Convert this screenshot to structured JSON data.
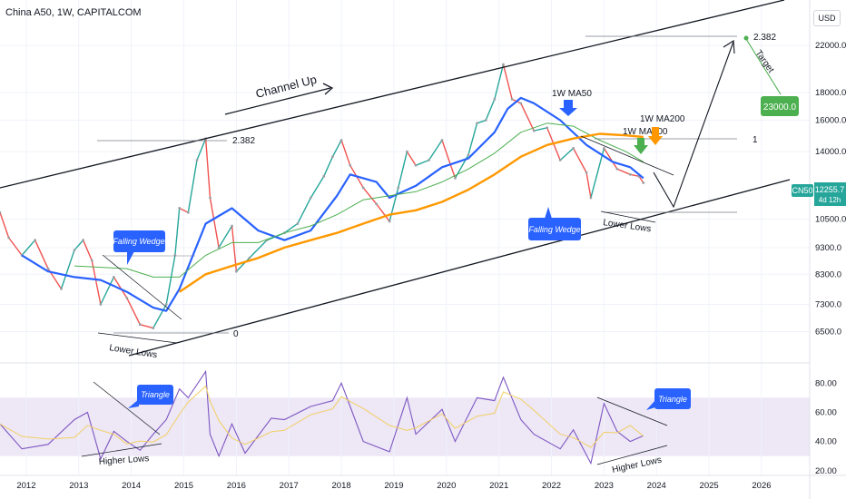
{
  "header": {
    "title": "China A50, 1W, CAPITALCOM",
    "currency": "USD"
  },
  "colors": {
    "up": "#26a69a",
    "down": "#ef5350",
    "ma50": "#2962ff",
    "ma100": "#4caf50",
    "ma200": "#ff9800",
    "rsi": "#7e57c2",
    "rsi_signal": "#f2cf63",
    "rsi_band": "#ede7f6",
    "bubble": "#2962ff",
    "target": "#4caf50"
  },
  "chart_data": [
    {
      "type": "line",
      "title": "China A50, 1W, CAPITALCOM",
      "y_scale": "log",
      "ylim": [
        5800,
        25500
      ],
      "xlim": [
        "2011-07",
        "2026-12"
      ],
      "x_ticks": [
        "2012",
        "2013",
        "2014",
        "2015",
        "2016",
        "2017",
        "2018",
        "2019",
        "2020",
        "2021",
        "2022",
        "2023",
        "2024",
        "2025",
        "2026"
      ],
      "y_ticks": [
        "22000.0",
        "18000.0",
        "16000.0",
        "14000.0",
        "10500.0",
        "9300.0",
        "8300.0",
        "7300.0",
        "6500.0"
      ],
      "price_label": {
        "symbol": "CN50",
        "value": "12255.7",
        "countdown": "4d 12h"
      },
      "target_label": "23000.0",
      "series": [
        {
          "name": "Price",
          "points": [
            [
              "2011-07",
              10800
            ],
            [
              "2011-09",
              9700
            ],
            [
              "2011-12",
              9000
            ],
            [
              "2012-03",
              9600
            ],
            [
              "2012-06",
              8500
            ],
            [
              "2012-09",
              7800
            ],
            [
              "2012-12",
              9200
            ],
            [
              "2013-02",
              9600
            ],
            [
              "2013-04",
              8800
            ],
            [
              "2013-06",
              7300
            ],
            [
              "2013-09",
              8200
            ],
            [
              "2013-12",
              7500
            ],
            [
              "2014-03",
              6700
            ],
            [
              "2014-06",
              6600
            ],
            [
              "2014-09",
              7300
            ],
            [
              "2014-11",
              9000
            ],
            [
              "2014-12",
              11000
            ],
            [
              "2015-02",
              10800
            ],
            [
              "2015-04",
              13500
            ],
            [
              "2015-06",
              14800
            ],
            [
              "2015-07",
              11500
            ],
            [
              "2015-09",
              9300
            ],
            [
              "2015-12",
              10200
            ],
            [
              "2016-01",
              8400
            ],
            [
              "2016-04",
              8900
            ],
            [
              "2016-08",
              9600
            ],
            [
              "2016-12",
              9900
            ],
            [
              "2017-03",
              10300
            ],
            [
              "2017-06",
              11500
            ],
            [
              "2017-09",
              12600
            ],
            [
              "2017-11",
              13700
            ],
            [
              "2018-01",
              14700
            ],
            [
              "2018-03",
              13200
            ],
            [
              "2018-06",
              12000
            ],
            [
              "2018-09",
              11200
            ],
            [
              "2018-12",
              10400
            ],
            [
              "2019-02",
              12000
            ],
            [
              "2019-04",
              14000
            ],
            [
              "2019-06",
              13200
            ],
            [
              "2019-09",
              13500
            ],
            [
              "2019-12",
              14700
            ],
            [
              "2020-03",
              12500
            ],
            [
              "2020-06",
              13800
            ],
            [
              "2020-08",
              15800
            ],
            [
              "2020-10",
              16000
            ],
            [
              "2020-12",
              17500
            ],
            [
              "2021-02",
              20300
            ],
            [
              "2021-04",
              17500
            ],
            [
              "2021-06",
              17200
            ],
            [
              "2021-09",
              15300
            ],
            [
              "2021-12",
              15500
            ],
            [
              "2022-03",
              13500
            ],
            [
              "2022-06",
              14200
            ],
            [
              "2022-09",
              12800
            ],
            [
              "2022-10",
              11500
            ],
            [
              "2023-01",
              14200
            ],
            [
              "2023-04",
              13000
            ],
            [
              "2023-07",
              12700
            ],
            [
              "2023-09",
              12600
            ],
            [
              "2023-10",
              12255.7
            ]
          ]
        },
        {
          "name": "1W MA50",
          "points": [
            [
              "2011-12",
              9000
            ],
            [
              "2012-06",
              8400
            ],
            [
              "2012-12",
              8200
            ],
            [
              "2013-06",
              8100
            ],
            [
              "2013-12",
              7700
            ],
            [
              "2014-06",
              7200
            ],
            [
              "2014-09",
              7100
            ],
            [
              "2014-12",
              7800
            ],
            [
              "2015-06",
              10300
            ],
            [
              "2015-12",
              11000
            ],
            [
              "2016-06",
              10000
            ],
            [
              "2016-12",
              9600
            ],
            [
              "2017-06",
              10000
            ],
            [
              "2017-12",
              11600
            ],
            [
              "2018-03",
              12700
            ],
            [
              "2018-09",
              12300
            ],
            [
              "2018-12",
              11500
            ],
            [
              "2019-06",
              12100
            ],
            [
              "2019-12",
              13100
            ],
            [
              "2020-06",
              13600
            ],
            [
              "2020-12",
              15200
            ],
            [
              "2021-03",
              16800
            ],
            [
              "2021-06",
              17600
            ],
            [
              "2021-09",
              17200
            ],
            [
              "2022-03",
              16000
            ],
            [
              "2022-09",
              14400
            ],
            [
              "2023-03",
              13400
            ],
            [
              "2023-07",
              13100
            ],
            [
              "2023-10",
              12500
            ]
          ]
        },
        {
          "name": "1W MA100",
          "points": [
            [
              "2012-12",
              8600
            ],
            [
              "2013-12",
              8500
            ],
            [
              "2014-06",
              8200
            ],
            [
              "2014-12",
              8200
            ],
            [
              "2015-06",
              9000
            ],
            [
              "2015-12",
              9500
            ],
            [
              "2016-06",
              9500
            ],
            [
              "2016-12",
              9900
            ],
            [
              "2017-06",
              10200
            ],
            [
              "2017-12",
              10700
            ],
            [
              "2018-06",
              11400
            ],
            [
              "2018-12",
              11600
            ],
            [
              "2019-06",
              11800
            ],
            [
              "2019-12",
              12300
            ],
            [
              "2020-06",
              13000
            ],
            [
              "2020-12",
              13900
            ],
            [
              "2021-06",
              15200
            ],
            [
              "2021-12",
              15800
            ],
            [
              "2022-06",
              15600
            ],
            [
              "2022-12",
              14700
            ],
            [
              "2023-06",
              14000
            ],
            [
              "2023-10",
              13400
            ]
          ]
        },
        {
          "name": "1W MA200",
          "points": [
            [
              "2014-12",
              7700
            ],
            [
              "2015-06",
              8300
            ],
            [
              "2015-12",
              8600
            ],
            [
              "2016-06",
              8900
            ],
            [
              "2016-12",
              9300
            ],
            [
              "2017-06",
              9600
            ],
            [
              "2017-12",
              9900
            ],
            [
              "2018-06",
              10300
            ],
            [
              "2018-12",
              10700
            ],
            [
              "2019-06",
              10900
            ],
            [
              "2019-12",
              11300
            ],
            [
              "2020-06",
              11900
            ],
            [
              "2020-12",
              12700
            ],
            [
              "2021-06",
              13700
            ],
            [
              "2021-12",
              14400
            ],
            [
              "2022-06",
              14800
            ],
            [
              "2022-12",
              15100
            ],
            [
              "2023-06",
              15000
            ],
            [
              "2023-10",
              14900
            ]
          ]
        }
      ],
      "annotations": [
        {
          "text": "Channel Up"
        },
        {
          "text": "1W MA50"
        },
        {
          "text": "1W MA100"
        },
        {
          "text": "1W MA200"
        },
        {
          "text": "Falling Wedge"
        },
        {
          "text": "Falling Wedge"
        },
        {
          "text": "Lower Lows"
        },
        {
          "text": "Lower Lows"
        },
        {
          "text": "Target"
        },
        {
          "text": "2.382"
        },
        {
          "text": "2.382"
        },
        {
          "text": "1"
        },
        {
          "text": "0"
        },
        {
          "text": "0"
        }
      ]
    },
    {
      "type": "line",
      "ylim": [
        18,
        92
      ],
      "y_ticks": [
        "80.00",
        "60.00",
        "40.00",
        "20.00"
      ],
      "band": [
        30,
        70
      ],
      "series": [
        {
          "name": "RSI",
          "points": [
            [
              "2011-07",
              52
            ],
            [
              "2011-12",
              35
            ],
            [
              "2012-06",
              38
            ],
            [
              "2012-12",
              55
            ],
            [
              "2013-03",
              60
            ],
            [
              "2013-06",
              28
            ],
            [
              "2013-09",
              47
            ],
            [
              "2013-12",
              40
            ],
            [
              "2014-03",
              34
            ],
            [
              "2014-06",
              45
            ],
            [
              "2014-09",
              55
            ],
            [
              "2014-12",
              76
            ],
            [
              "2015-02",
              70
            ],
            [
              "2015-06",
              88
            ],
            [
              "2015-07",
              45
            ],
            [
              "2015-09",
              30
            ],
            [
              "2015-12",
              52
            ],
            [
              "2016-03",
              32
            ],
            [
              "2016-09",
              56
            ],
            [
              "2016-12",
              55
            ],
            [
              "2017-06",
              64
            ],
            [
              "2017-11",
              68
            ],
            [
              "2018-01",
              80
            ],
            [
              "2018-06",
              40
            ],
            [
              "2018-12",
              33
            ],
            [
              "2019-04",
              70
            ],
            [
              "2019-06",
              45
            ],
            [
              "2019-12",
              62
            ],
            [
              "2020-03",
              40
            ],
            [
              "2020-08",
              70
            ],
            [
              "2020-12",
              68
            ],
            [
              "2021-02",
              84
            ],
            [
              "2021-06",
              55
            ],
            [
              "2021-09",
              45
            ],
            [
              "2022-03",
              35
            ],
            [
              "2022-06",
              48
            ],
            [
              "2022-10",
              25
            ],
            [
              "2023-01",
              66
            ],
            [
              "2023-04",
              47
            ],
            [
              "2023-07",
              40
            ],
            [
              "2023-10",
              44
            ]
          ]
        }
      ],
      "annotations": [
        {
          "text": "Triangle"
        },
        {
          "text": "Triangle"
        },
        {
          "text": "Higher Lows"
        },
        {
          "text": "Higher Lows"
        }
      ]
    }
  ]
}
